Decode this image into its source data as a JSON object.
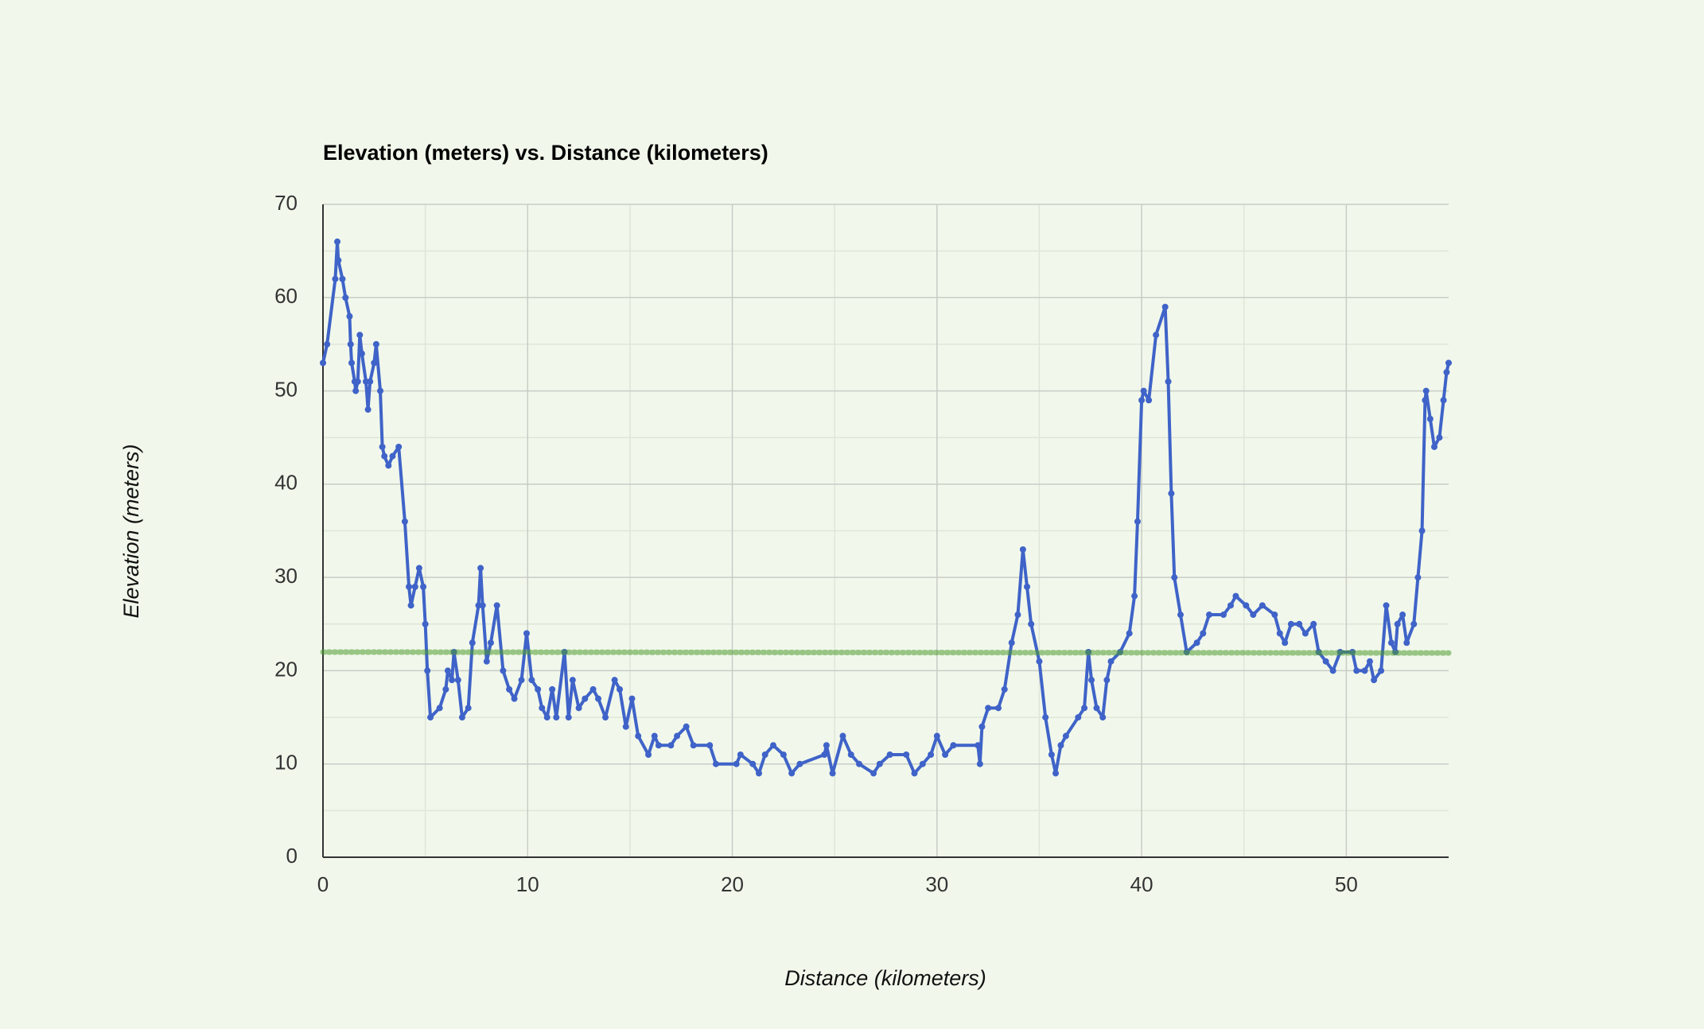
{
  "chart_data": {
    "type": "line",
    "title": "Elevation (meters) vs. Distance (kilometers)",
    "x_label": "Distance (kilometers)",
    "y_label": "Elevation (meters)",
    "xlim": [
      0,
      55
    ],
    "ylim": [
      0,
      70
    ],
    "xticks": [
      0,
      10,
      20,
      30,
      40,
      50
    ],
    "yticks": [
      0,
      10,
      20,
      30,
      40,
      50,
      60,
      70
    ],
    "grid": true,
    "series": [
      {
        "color": "#3f63c8",
        "markers": true,
        "x": [
          0,
          0.2,
          0.6,
          0.7,
          0.75,
          0.95,
          1.1,
          1.3,
          1.35,
          1.4,
          1.55,
          1.6,
          1.7,
          1.8,
          1.9,
          2.1,
          2.2,
          2.3,
          2.5,
          2.6,
          2.8,
          2.9,
          3.0,
          3.2,
          3.4,
          3.7,
          4.0,
          4.2,
          4.3,
          4.5,
          4.7,
          4.9,
          5.0,
          5.1,
          5.25,
          5.7,
          6.0,
          6.1,
          6.3,
          6.4,
          6.6,
          6.8,
          7.1,
          7.3,
          7.6,
          7.7,
          7.8,
          8.0,
          8.2,
          8.5,
          8.8,
          9.1,
          9.35,
          9.7,
          9.95,
          10.2,
          10.5,
          10.7,
          10.95,
          11.2,
          11.4,
          11.8,
          12.0,
          12.2,
          12.5,
          12.8,
          13.2,
          13.45,
          13.8,
          14.25,
          14.5,
          14.8,
          15.1,
          15.4,
          15.9,
          16.2,
          16.4,
          17.0,
          17.3,
          17.75,
          18.1,
          18.9,
          19.2,
          20.2,
          20.4,
          21.0,
          21.3,
          21.6,
          22.0,
          22.5,
          22.9,
          23.3,
          24.5,
          24.6,
          24.9,
          25.4,
          25.8,
          26.2,
          26.9,
          27.2,
          27.7,
          28.5,
          28.9,
          29.3,
          29.7,
          30.0,
          30.4,
          30.8,
          32.0,
          32.1,
          32.2,
          32.5,
          33.0,
          33.3,
          33.65,
          33.95,
          34.2,
          34.4,
          34.6,
          35.0,
          35.3,
          35.6,
          35.8,
          36.05,
          36.3,
          36.9,
          37.2,
          37.4,
          37.55,
          37.8,
          38.1,
          38.3,
          38.5,
          38.95,
          39.4,
          39.65,
          39.8,
          40.0,
          40.1,
          40.35,
          40.7,
          41.15,
          41.3,
          41.45,
          41.6,
          41.9,
          42.2,
          42.7,
          43.0,
          43.3,
          44.0,
          44.35,
          44.6,
          45.1,
          45.45,
          45.9,
          46.5,
          46.75,
          47.0,
          47.3,
          47.7,
          48.0,
          48.4,
          48.65,
          49.0,
          49.35,
          49.7,
          50.3,
          50.5,
          50.9,
          51.15,
          51.35,
          51.7,
          51.95,
          52.2,
          52.4,
          52.5,
          52.75,
          52.95,
          53.3,
          53.5,
          53.7,
          53.85,
          53.9,
          54.1,
          54.3,
          54.55,
          54.75,
          54.9,
          55.0
        ],
        "values": [
          53,
          55,
          62,
          66,
          64,
          62,
          60,
          58,
          55,
          53,
          51,
          50,
          51,
          56,
          54,
          51,
          48,
          51,
          53,
          55,
          50,
          44,
          43,
          42,
          43,
          44,
          36,
          29,
          27,
          29,
          31,
          29,
          25,
          20,
          15,
          16,
          18,
          20,
          19,
          22,
          19,
          15,
          16,
          23,
          27,
          31,
          27,
          21,
          23,
          27,
          20,
          18,
          17,
          19,
          24,
          19,
          18,
          16,
          15,
          18,
          15,
          22,
          15,
          19,
          16,
          17,
          18,
          17,
          15,
          19,
          18,
          14,
          17,
          13,
          11,
          13,
          12,
          12,
          13,
          14,
          12,
          12,
          10,
          10,
          11,
          10,
          9,
          11,
          12,
          11,
          9,
          10,
          11,
          12,
          9,
          13,
          11,
          10,
          9,
          10,
          11,
          11,
          9,
          10,
          11,
          13,
          11,
          12,
          12,
          10,
          14,
          16,
          16,
          18,
          23,
          26,
          33,
          29,
          25,
          21,
          15,
          11,
          9,
          12,
          13,
          15,
          16,
          22,
          19,
          16,
          15,
          19,
          21,
          22,
          24,
          28,
          36,
          49,
          50,
          49,
          56,
          59,
          51,
          39,
          30,
          26,
          22,
          23,
          24,
          26,
          26,
          27,
          28,
          27,
          26,
          27,
          26,
          24,
          23,
          25,
          25,
          24,
          25,
          22,
          21,
          20,
          22,
          22,
          20,
          20,
          21,
          19,
          20,
          27,
          23,
          22,
          25,
          26,
          23,
          25,
          30,
          35,
          49,
          50,
          47,
          44,
          45,
          49,
          52,
          53
        ]
      },
      {
        "color": "#4f9a2f",
        "markers": false,
        "x": [
          0,
          55
        ],
        "values": [
          22,
          21.9
        ]
      }
    ]
  }
}
